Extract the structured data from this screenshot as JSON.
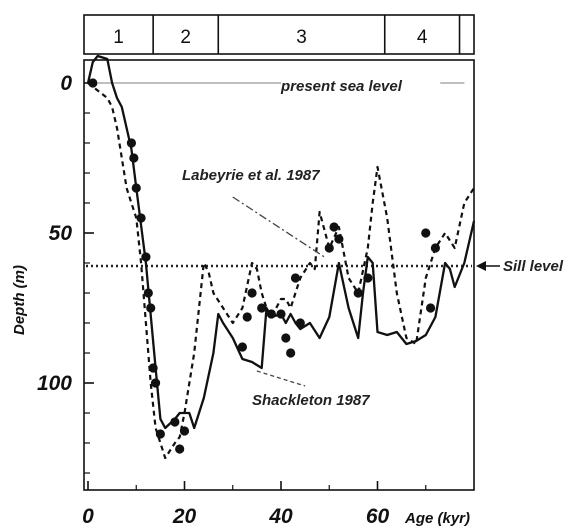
{
  "chart_data": {
    "type": "line",
    "title": "",
    "xlabel": "Age (kyr)",
    "ylabel": "Depth (m)",
    "xlim": [
      0,
      80
    ],
    "ylim": [
      0,
      135
    ],
    "y_inverted": true,
    "grid": false,
    "x_ticks": [
      {
        "value": 0,
        "label": "0"
      },
      {
        "value": 20,
        "label": "20"
      },
      {
        "value": 40,
        "label": "40"
      },
      {
        "value": 60,
        "label": "60"
      }
    ],
    "y_ticks": [
      {
        "value": 0,
        "label": "0"
      },
      {
        "value": 50,
        "label": "50"
      },
      {
        "value": 100,
        "label": "100"
      }
    ],
    "stages": [
      {
        "label": "1",
        "start": 0,
        "end": 13.5
      },
      {
        "label": "2",
        "start": 13.5,
        "end": 27
      },
      {
        "label": "3",
        "start": 27,
        "end": 61.5
      },
      {
        "label": "4",
        "start": 61.5,
        "end": 77
      },
      {
        "label": "",
        "start": 77,
        "end": 80
      }
    ],
    "reference_lines": [
      {
        "label": "present sea level",
        "y": 0,
        "style": "solid",
        "color": "#999999"
      },
      {
        "label": "Sill level",
        "y": 61,
        "style": "dotted",
        "color": "#222222"
      }
    ],
    "series": [
      {
        "name": "Shackleton 1987",
        "style": "solid",
        "x": [
          0,
          1,
          2,
          4,
          5,
          6,
          7,
          8,
          9,
          10,
          12,
          14,
          15,
          16,
          18,
          19,
          21,
          22,
          24,
          26,
          27,
          28,
          30,
          32,
          34,
          36,
          37,
          38,
          40,
          41,
          42,
          43,
          44,
          46,
          48,
          50,
          52,
          54,
          56,
          57,
          58,
          59,
          60,
          62,
          64,
          66,
          68,
          70,
          72,
          74,
          75,
          76,
          78,
          80
        ],
        "y": [
          0,
          -7,
          -9,
          -8,
          0,
          5,
          8,
          15,
          22,
          35,
          60,
          95,
          112,
          115,
          112,
          110,
          110,
          115,
          105,
          90,
          77,
          80,
          85,
          92,
          93,
          95,
          75,
          78,
          77,
          80,
          77,
          80,
          82,
          80,
          85,
          78,
          60,
          75,
          85,
          70,
          58,
          60,
          83,
          84,
          83,
          87,
          86,
          84,
          78,
          60,
          62,
          68,
          60,
          46
        ]
      },
      {
        "name": "Labeyrie et al. 1987",
        "style": "dashed",
        "x": [
          0,
          4,
          5,
          6,
          7,
          8,
          9,
          10,
          11,
          12,
          13,
          14,
          15,
          16,
          18,
          19,
          20,
          22,
          24,
          25,
          26,
          28,
          30,
          32,
          34,
          35,
          36,
          37,
          38,
          40,
          41,
          42,
          44,
          46,
          47,
          48,
          50,
          52,
          54,
          56,
          58,
          59,
          60,
          62,
          64,
          66,
          68,
          70,
          72,
          74,
          76,
          78,
          80
        ],
        "y": [
          0,
          5,
          8,
          15,
          25,
          35,
          40,
          45,
          60,
          80,
          100,
          115,
          120,
          125,
          120,
          118,
          110,
          90,
          60,
          63,
          70,
          75,
          80,
          75,
          60,
          62,
          70,
          75,
          78,
          72,
          72,
          75,
          65,
          60,
          62,
          43,
          55,
          48,
          65,
          70,
          55,
          40,
          28,
          45,
          70,
          85,
          87,
          65,
          55,
          50,
          55,
          40,
          35
        ]
      },
      {
        "name": "",
        "style": "points",
        "x": [
          1,
          9,
          9.5,
          10,
          11,
          12,
          12.5,
          13,
          13.5,
          14,
          15,
          18,
          19,
          20,
          32,
          33,
          34,
          36,
          38,
          40,
          41,
          42,
          43,
          44,
          50,
          51,
          52,
          56,
          58,
          70,
          71,
          72
        ],
        "y": [
          0,
          20,
          25,
          35,
          45,
          58,
          70,
          75,
          95,
          100,
          117,
          113,
          122,
          116,
          88,
          78,
          70,
          75,
          77,
          77,
          85,
          90,
          65,
          80,
          55,
          48,
          52,
          70,
          65,
          50,
          75,
          55
        ]
      }
    ],
    "annotations": [
      {
        "text": "present sea level",
        "target": "present sea level"
      },
      {
        "text": "Labeyrie et al. 1987",
        "target": "Labeyrie et al. 1987"
      },
      {
        "text": "Shackleton 1987",
        "target": "Shackleton 1987"
      },
      {
        "text": "Sill level",
        "target": "Sill level"
      }
    ]
  }
}
